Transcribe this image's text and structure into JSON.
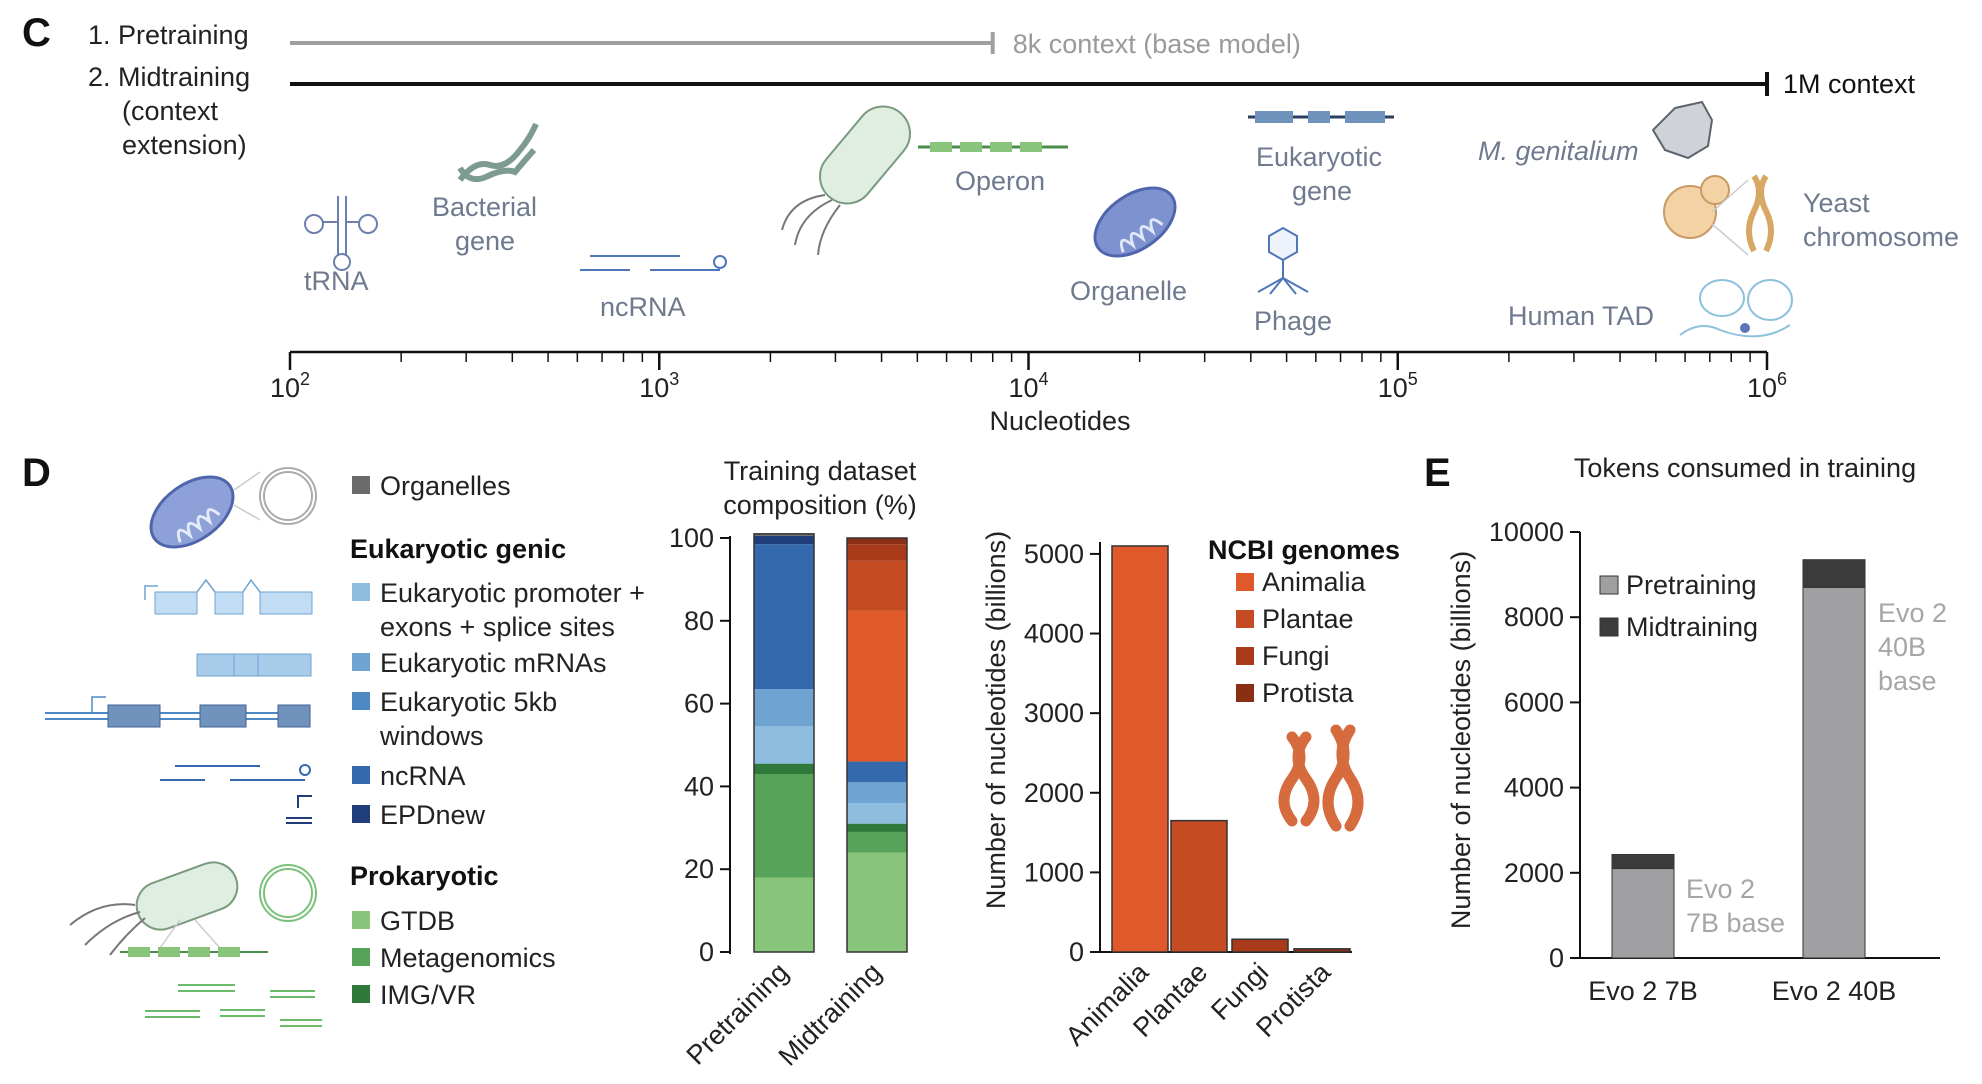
{
  "panel_labels": {
    "c": "C",
    "d": "D",
    "e": "E"
  },
  "panel_c": {
    "pretraining_label": "1. Pretraining",
    "midtraining_label_1": "2. Midtraining",
    "midtraining_label_2": "(context",
    "midtraining_label_3": "extension)",
    "pretraining_context": "8k context (base model)",
    "midtraining_context": "1M context",
    "xlabel": "Nucleotides",
    "tick_base": "10",
    "ticks": [
      {
        "value": 100,
        "exp": "2"
      },
      {
        "value": 1000,
        "exp": "3"
      },
      {
        "value": 10000,
        "exp": "4"
      },
      {
        "value": 100000,
        "exp": "5"
      },
      {
        "value": 1000000,
        "exp": "6"
      }
    ],
    "pretraining_end": 8000,
    "midtraining_end": 1000000,
    "examples": {
      "trna": "tRNA",
      "bacterial_1": "Bacterial",
      "bacterial_2": "gene",
      "ncrna": "ncRNA",
      "operon": "Operon",
      "organelle": "Organelle",
      "euk_1": "Eukaryotic",
      "euk_2": "gene",
      "phage": "Phage",
      "mgen": "M. genitalium",
      "yeast_1": "Yeast",
      "yeast_2": "chromosome",
      "tad": "Human TAD"
    }
  },
  "panel_d": {
    "legend": {
      "organelles": "Organelles",
      "euk_header": "Eukaryotic genic",
      "euk_promoter_1": "Eukaryotic promoter +",
      "euk_promoter_2": "exons + splice sites",
      "euk_mrna": "Eukaryotic mRNAs",
      "euk_5kb_1": "Eukaryotic 5kb",
      "euk_5kb_2": "windows",
      "ncrna": "ncRNA",
      "epdnew": "EPDnew",
      "prok_header": "Prokaryotic",
      "gtdb": "GTDB",
      "metagenomics": "Metagenomics",
      "imgvr": "IMG/VR"
    },
    "colors": {
      "organelles": "#6b6b6b",
      "euk_promoter": "#8fbde0",
      "euk_mrna": "#6ea3d2",
      "euk_5kb": "#4f89c4",
      "ncrna": "#3569ad",
      "epdnew": "#1e3d7a",
      "gtdb": "#88c57a",
      "metagenomics": "#57a35a",
      "imgvr": "#2f7a3a",
      "animalia": "#e0592a",
      "plantae": "#c44b22",
      "fungi": "#a83a19",
      "protista": "#8a2e14",
      "pretraining": "#a0a0a3",
      "midtraining": "#3c3c3c"
    }
  },
  "chart_data": [
    {
      "type": "bar",
      "title": "Training dataset composition (%)",
      "title_line1": "Training dataset",
      "title_line2": "composition (%)",
      "stacked": true,
      "categories": [
        "Pretraining",
        "Midtraining"
      ],
      "ylim": [
        0,
        100
      ],
      "yticks": [
        0,
        20,
        40,
        60,
        80,
        100
      ],
      "series": [
        {
          "name": "GTDB",
          "values": [
            18,
            24
          ]
        },
        {
          "name": "Metagenomics",
          "values": [
            25,
            5
          ]
        },
        {
          "name": "IMG/VR",
          "values": [
            2.5,
            2
          ]
        },
        {
          "name": "Eukaryotic promoter + exons + splice sites",
          "values": [
            9,
            5
          ]
        },
        {
          "name": "Eukaryotic mRNAs",
          "values": [
            9,
            5
          ]
        },
        {
          "name": "Eukaryotic 5kb windows",
          "values": [
            0,
            0
          ]
        },
        {
          "name": "ncRNA",
          "values": [
            35,
            5
          ]
        },
        {
          "name": "EPDnew",
          "values": [
            2,
            0
          ]
        },
        {
          "name": "Animalia",
          "values": [
            0,
            36.5
          ]
        },
        {
          "name": "Plantae",
          "values": [
            0,
            12
          ]
        },
        {
          "name": "Fungi",
          "values": [
            0,
            4
          ]
        },
        {
          "name": "Protista",
          "values": [
            0,
            1.5
          ]
        },
        {
          "name": "Organelles",
          "values": [
            0.5,
            0
          ]
        }
      ]
    },
    {
      "type": "bar",
      "title": "NCBI genomes",
      "ylabel": "Number of nucleotides (billions)",
      "categories": [
        "Animalia",
        "Plantae",
        "Fungi",
        "Protista"
      ],
      "values": [
        5100,
        1650,
        160,
        40
      ],
      "ylim": [
        0,
        5200
      ],
      "yticks": [
        0,
        1000,
        2000,
        3000,
        4000,
        5000
      ]
    },
    {
      "type": "bar",
      "title": "Tokens consumed in training",
      "ylabel": "Number of nucleotides (billions)",
      "stacked": true,
      "categories": [
        "Evo 2 7B",
        "Evo 2 40B"
      ],
      "series": [
        {
          "name": "Pretraining",
          "values": [
            2100,
            8700
          ]
        },
        {
          "name": "Midtraining",
          "values": [
            330,
            650
          ]
        }
      ],
      "ylim": [
        0,
        10000
      ],
      "yticks": [
        0,
        2000,
        4000,
        6000,
        8000,
        10000
      ],
      "annotations": [
        {
          "line1": "Evo 2",
          "line2": "7B base"
        },
        {
          "line1": "Evo 2",
          "line2": "40B",
          "line3": "base"
        }
      ]
    }
  ]
}
